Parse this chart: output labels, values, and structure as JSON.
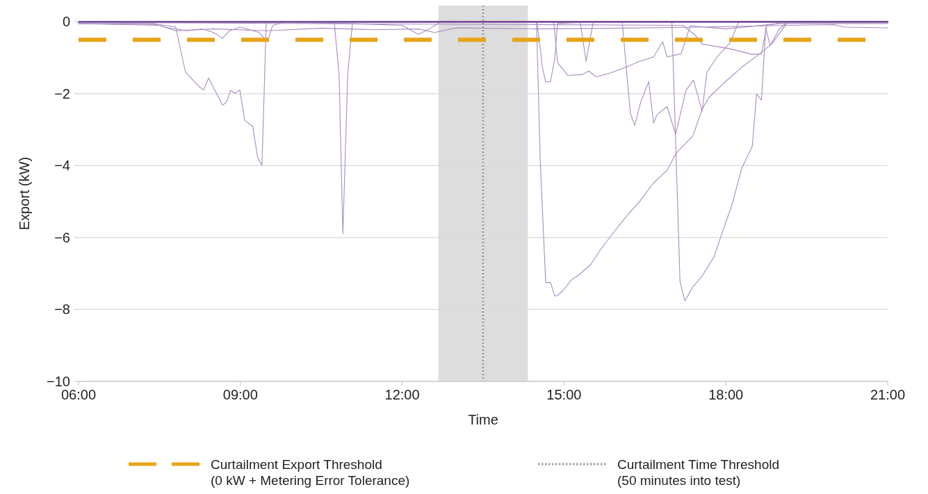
{
  "chart_data": {
    "type": "line",
    "xlabel": "Time",
    "ylabel": "Export (kW)",
    "xlim": [
      6,
      21
    ],
    "ylim": [
      -10,
      0.45
    ],
    "xticks": [
      {
        "value": 6,
        "label": "06:00"
      },
      {
        "value": 9,
        "label": "09:00"
      },
      {
        "value": 12,
        "label": "12:00"
      },
      {
        "value": 15,
        "label": "15:00"
      },
      {
        "value": 18,
        "label": "18:00"
      },
      {
        "value": 21,
        "label": "21:00"
      }
    ],
    "yticks": [
      {
        "value": -10,
        "label": "−10"
      },
      {
        "value": -8,
        "label": "−8"
      },
      {
        "value": -6,
        "label": "−6"
      },
      {
        "value": -4,
        "label": "−4"
      },
      {
        "value": -2,
        "label": "−2"
      },
      0
    ],
    "grid": "y",
    "legend": "bottom",
    "line_style": "solid",
    "marker": "none",
    "bands": [
      {
        "axis": "x",
        "from": 12.67,
        "to": 14.33,
        "color": "#dddddd"
      }
    ],
    "ref_lines": [
      {
        "axis": "y",
        "value": -0.5,
        "label": "Curtailment Export Threshold\n(0 kW + Metering Error Tolerance)",
        "color": "#e8a317",
        "line_style": "dashed"
      },
      {
        "axis": "x",
        "value": 13.5,
        "label": "Curtailment Time Threshold\n(50 minutes into test)",
        "color": "#a0a0a0",
        "line_style": "dotted"
      }
    ],
    "series": [
      {
        "color": "#a98cc0",
        "x": [
          6,
          7.4,
          7.6,
          8.0,
          8.3,
          8.5,
          8.67,
          8.8,
          9.0,
          9.35,
          9.5,
          9.6,
          9.8,
          11.0,
          12.0,
          12.3,
          12.5,
          12.7,
          21
        ],
        "values": [
          -0.02,
          -0.05,
          -0.15,
          -0.25,
          -0.2,
          -0.3,
          -0.46,
          -0.25,
          -0.15,
          -0.3,
          -0.55,
          -0.1,
          -0.02,
          -0.05,
          -0.1,
          -0.35,
          -0.2,
          -0.02,
          -0.02
        ]
      },
      {
        "color": "#a98cc0",
        "x": [
          6,
          7.5,
          7.8,
          8.5,
          9.5,
          10.5,
          11.5,
          12.3,
          12.6,
          13,
          14.5,
          16,
          17.5,
          18.5,
          19.2,
          20.0,
          20.2,
          21
        ],
        "values": [
          -0.05,
          -0.1,
          -0.25,
          -0.2,
          -0.25,
          -0.18,
          -0.22,
          -0.2,
          -0.3,
          -0.17,
          -0.2,
          -0.18,
          -0.15,
          -0.12,
          -0.1,
          -0.08,
          -0.15,
          -0.17
        ]
      },
      {
        "color": "#a98cc0",
        "x": [
          6,
          7.5,
          7.8,
          7.98,
          8.24,
          8.32,
          8.41,
          8.67,
          8.74,
          8.82,
          8.9,
          8.99,
          9.08,
          9.23,
          9.32,
          9.4,
          9.48,
          21
        ],
        "values": [
          -0.05,
          -0.08,
          -0.14,
          -1.39,
          -1.81,
          -1.9,
          -1.56,
          -2.32,
          -2.24,
          -1.91,
          -1.99,
          -1.9,
          -2.74,
          -2.91,
          -3.78,
          -3.99,
          -0.02,
          -0.02
        ]
      },
      {
        "color": "#a98cc0",
        "x": [
          6,
          10.74,
          10.83,
          10.9,
          10.99,
          11.08,
          21
        ],
        "values": [
          -0.02,
          -0.02,
          -1.46,
          -5.9,
          -1.46,
          0,
          0
        ]
      },
      {
        "color": "#a98cc0",
        "x": [
          6,
          14.49,
          14.56,
          14.66,
          14.75,
          14.83,
          14.89,
          14.98,
          15.15,
          15.28,
          15.5,
          15.67,
          15.89,
          16.14,
          16.4,
          16.66,
          16.91,
          17.08,
          17.39,
          17.56,
          17.69,
          17.98,
          18.29,
          18.63,
          18.85,
          19.14,
          21
        ],
        "values": [
          -0.02,
          -0.02,
          -3.9,
          -7.25,
          -7.25,
          -7.63,
          -7.6,
          -7.47,
          -7.16,
          -7.03,
          -6.74,
          -6.35,
          -5.91,
          -5.44,
          -5.0,
          -4.48,
          -4.13,
          -3.65,
          -3.17,
          -2.43,
          -2.1,
          -1.68,
          -1.27,
          -0.89,
          -0.62,
          -0.02,
          -0.02
        ]
      },
      {
        "color": "#a98cc0",
        "x": [
          6,
          17.0,
          17.15,
          17.24,
          17.39,
          17.56,
          17.78,
          17.91,
          18.12,
          18.29,
          18.49,
          18.57,
          18.66,
          18.74,
          18.82,
          18.98,
          19.14,
          21
        ],
        "values": [
          -0.02,
          -0.02,
          -7.22,
          -7.76,
          -7.37,
          -7.07,
          -6.54,
          -5.96,
          -5.06,
          -4.09,
          -3.46,
          -2.01,
          -2.18,
          -0.17,
          -0.66,
          -0.23,
          0,
          0
        ]
      },
      {
        "color": "#a98cc0",
        "x": [
          6,
          14.81,
          14.88,
          15.07,
          15.33,
          15.46,
          15.59,
          15.85,
          16.14,
          16.4,
          16.66,
          16.83,
          16.91,
          17.17,
          17.34,
          18.0,
          19.0,
          21
        ],
        "values": [
          -0.02,
          -0.02,
          -1.14,
          -1.49,
          -1.47,
          -1.37,
          -1.53,
          -1.43,
          -1.27,
          -1.1,
          -0.98,
          -0.56,
          -0.98,
          -0.89,
          -0.11,
          -0.2,
          -0.05,
          -0.05
        ]
      },
      {
        "color": "#a98cc0",
        "x": [
          6,
          14.5,
          14.6,
          14.66,
          14.75,
          14.83,
          14.88,
          15.3,
          15.41,
          15.54,
          21
        ],
        "values": [
          -0.02,
          -0.02,
          -1.27,
          -1.68,
          -1.66,
          -1.0,
          -0.05,
          -0.02,
          -1.1,
          -0.02,
          -0.02
        ]
      },
      {
        "color": "#a98cc0",
        "x": [
          6,
          16.08,
          16.23,
          16.31,
          16.42,
          16.57,
          16.66,
          16.72,
          16.91,
          17.07,
          17.26,
          17.4,
          17.56,
          17.65,
          17.84,
          18.07,
          18.24,
          21
        ],
        "values": [
          -0.02,
          -0.02,
          -2.55,
          -2.88,
          -2.24,
          -1.66,
          -2.82,
          -2.59,
          -2.36,
          -3.13,
          -1.91,
          -1.62,
          -2.49,
          -1.4,
          -0.97,
          -0.6,
          0,
          0
        ]
      },
      {
        "color": "#a98cc0",
        "x": [
          6,
          17.2,
          17.43,
          17.56,
          18.07,
          18.5,
          18.66,
          18.76,
          19.14,
          21
        ],
        "values": [
          -0.02,
          -0.1,
          -0.37,
          -0.62,
          -0.75,
          -0.91,
          -0.89,
          -0.1,
          0,
          0
        ]
      },
      {
        "color": "#6a3d8f",
        "x": [
          6,
          21
        ],
        "values": [
          0,
          0
        ]
      }
    ]
  }
}
